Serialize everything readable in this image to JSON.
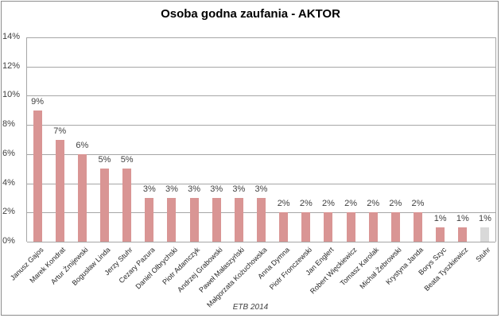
{
  "chart_data": {
    "type": "bar",
    "title": "Osoba godna zaufania - AKTOR",
    "xlabel": "",
    "ylabel": "",
    "source_note": "ETB 2014",
    "ylim": [
      0,
      14
    ],
    "y_ticks": [
      "0%",
      "2%",
      "4%",
      "6%",
      "8%",
      "10%",
      "12%",
      "14%"
    ],
    "grid": true,
    "legend": "none",
    "categories": [
      "Janusz Gajos",
      "Marek Kondrat",
      "Artur Żmijewski",
      "Bogusław Linda",
      "Jerzy Stuhr",
      "Cezary Pazura",
      "Daniel Olbrychski",
      "Piotr Adamczyk",
      "Andrzej Grabowski",
      "Paweł Małaszyński",
      "Małgorzata Kożuchowska",
      "Anna Dymna",
      "Piotr Fronczewski",
      "Jan Englert",
      "Robert Więckiewicz",
      "Tomasz Karolak",
      "Michał Żebrowski",
      "Krystyna Janda",
      "Borys Szyc",
      "Beata Tyszkiewicz",
      "Stuhr"
    ],
    "values": [
      9,
      7,
      6,
      5,
      5,
      3,
      3,
      3,
      3,
      3,
      3,
      2,
      2,
      2,
      2,
      2,
      2,
      2,
      1,
      1,
      1
    ],
    "value_labels": [
      "9%",
      "7%",
      "6%",
      "5%",
      "5%",
      "3%",
      "3%",
      "3%",
      "3%",
      "3%",
      "3%",
      "2%",
      "2%",
      "2%",
      "2%",
      "2%",
      "2%",
      "2%",
      "1%",
      "1%",
      "1%"
    ],
    "colors": {
      "bar": "#d99594",
      "bar_last": "#d9d9d9",
      "grid": "#a6a6a6"
    }
  }
}
